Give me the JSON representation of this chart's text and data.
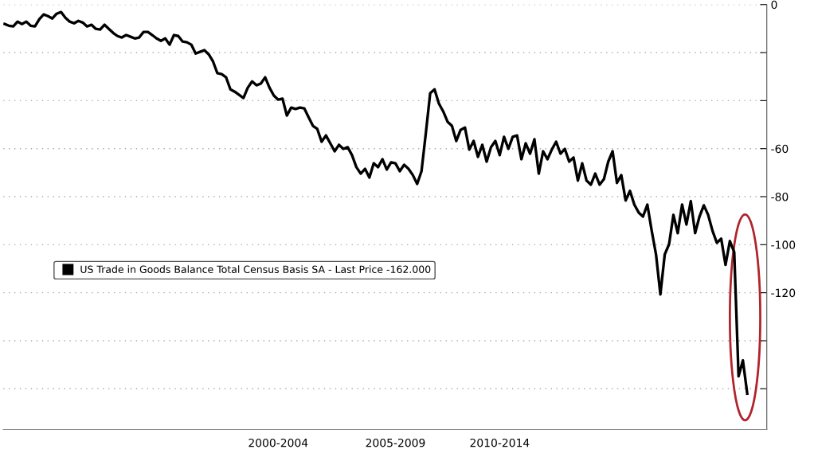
{
  "chart_data": {
    "type": "line",
    "categories": [
      null,
      null,
      null,
      null,
      null,
      null,
      null,
      null,
      null,
      null,
      null,
      null,
      null,
      null,
      null,
      null,
      null,
      null,
      null,
      null,
      null,
      null,
      null,
      null,
      null,
      null,
      null,
      null,
      null,
      null,
      null,
      null,
      null,
      null,
      null,
      null,
      null,
      null,
      null,
      null,
      null,
      null,
      null,
      null,
      null,
      null,
      null,
      null,
      null,
      null,
      null,
      null,
      null,
      null,
      null,
      null,
      null,
      null,
      null,
      null,
      null,
      null,
      null,
      "2000-2004",
      null,
      null,
      null,
      null,
      null,
      null,
      null,
      null,
      null,
      null,
      null,
      null,
      null,
      null,
      null,
      null,
      null,
      null,
      null,
      null,
      null,
      null,
      null,
      null,
      null,
      null,
      "2005-2009",
      null,
      null,
      null,
      null,
      null,
      null,
      null,
      null,
      null,
      null,
      null,
      null,
      null,
      null,
      null,
      null,
      null,
      null,
      null,
      null,
      null,
      null,
      null,
      "2010-2014",
      null,
      null,
      null,
      null,
      null,
      null,
      null,
      null,
      null,
      null,
      null,
      null,
      null,
      null,
      null,
      null,
      null,
      null,
      null,
      null,
      null,
      null,
      null,
      null,
      null,
      null,
      null,
      null,
      null,
      null,
      null,
      null,
      null,
      null,
      null,
      null,
      null,
      null,
      null,
      null,
      null,
      null,
      null,
      null,
      null,
      null,
      null,
      null,
      null,
      null,
      null,
      null,
      null,
      null,
      null,
      null,
      null
    ],
    "series": [
      {
        "name": "US Trade in Goods Balance Total Census Basis SA - Last Price -162.000",
        "color": "#000000",
        "values": [
          -8.1,
          -8.8,
          -9.1,
          -7.1,
          -8.1,
          -7.1,
          -8.8,
          -9.1,
          -6.1,
          -4.1,
          -4.8,
          -5.8,
          -3.8,
          -3.1,
          -5.5,
          -7.1,
          -7.8,
          -6.8,
          -7.5,
          -9.1,
          -8.4,
          -10.1,
          -10.4,
          -8.4,
          -10.1,
          -11.8,
          -13.1,
          -13.7,
          -12.7,
          -13.4,
          -14.1,
          -13.7,
          -11.4,
          -11.4,
          -12.7,
          -14.1,
          -15.1,
          -14.1,
          -16.7,
          -12.7,
          -13.1,
          -15.4,
          -15.7,
          -16.7,
          -20.4,
          -19.7,
          -19.0,
          -20.7,
          -23.7,
          -28.6,
          -29.0,
          -30.3,
          -35.3,
          -36.3,
          -37.6,
          -38.9,
          -34.6,
          -32.0,
          -33.6,
          -32.9,
          -30.3,
          -34.6,
          -37.9,
          -39.6,
          -39.2,
          -46.2,
          -42.9,
          -43.5,
          -42.9,
          -43.2,
          -46.9,
          -50.5,
          -51.8,
          -57.1,
          -54.5,
          -57.8,
          -61.1,
          -58.4,
          -60.1,
          -59.4,
          -62.7,
          -67.7,
          -70.4,
          -68.4,
          -72.0,
          -66.1,
          -67.7,
          -64.4,
          -68.7,
          -65.7,
          -66.1,
          -69.4,
          -66.7,
          -68.4,
          -71.0,
          -74.7,
          -69.4,
          -53.5,
          -36.9,
          -35.3,
          -41.2,
          -44.5,
          -48.8,
          -50.5,
          -56.8,
          -52.2,
          -51.2,
          -60.4,
          -56.8,
          -63.4,
          -58.4,
          -65.4,
          -59.4,
          -56.8,
          -62.7,
          -55.1,
          -60.1,
          -55.1,
          -54.5,
          -64.4,
          -57.8,
          -62.1,
          -56.1,
          -70.4,
          -61.1,
          -64.4,
          -60.4,
          -57.1,
          -62.1,
          -60.1,
          -65.4,
          -63.7,
          -73.3,
          -66.1,
          -73.3,
          -75.0,
          -70.4,
          -75.0,
          -72.7,
          -65.4,
          -61.1,
          -74.3,
          -71.0,
          -81.6,
          -77.6,
          -83.3,
          -86.6,
          -88.3,
          -83.3,
          -94.2,
          -104.1,
          -120.7,
          -104.1,
          -99.8,
          -87.6,
          -95.2,
          -83.3,
          -91.6,
          -81.9,
          -95.2,
          -88.3,
          -83.6,
          -87.6,
          -94.2,
          -99.2,
          -97.5,
          -108.4,
          -98.5,
          -103.1,
          -154.8,
          -148.2,
          -162
        ]
      }
    ],
    "ylim": [
      -177,
      0
    ],
    "yticks": [
      0,
      {
        "value": -20,
        "label": null
      },
      {
        "value": -40,
        "label": null
      },
      -60,
      -80,
      -100,
      -120,
      {
        "value": -140,
        "label": null
      },
      {
        "value": -160,
        "label": null
      }
    ],
    "grid": "y",
    "legend": "center left",
    "line_style": "solid",
    "marker": "none"
  }
}
